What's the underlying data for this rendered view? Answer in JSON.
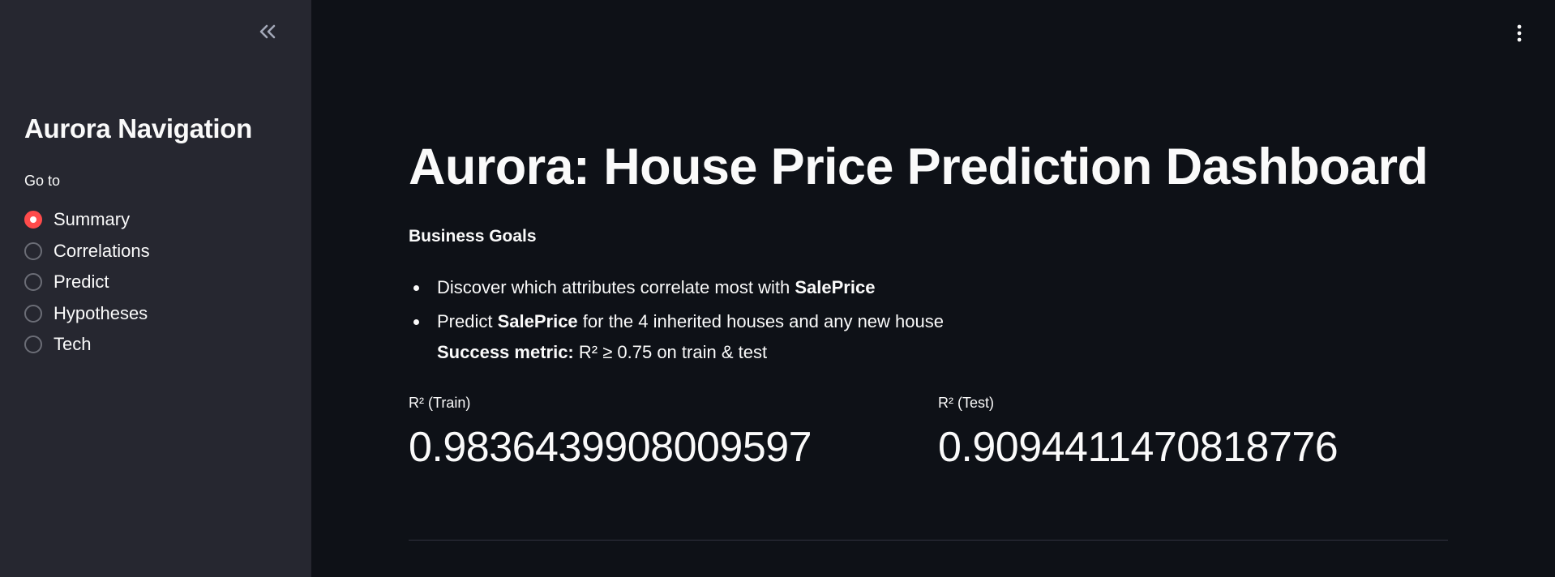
{
  "sidebar": {
    "collapse_icon": "chevron-double-left-icon",
    "title": "Aurora Navigation",
    "goto_label": "Go to",
    "items": [
      {
        "label": "Summary",
        "selected": true
      },
      {
        "label": "Correlations",
        "selected": false
      },
      {
        "label": "Predict",
        "selected": false
      },
      {
        "label": "Hypotheses",
        "selected": false
      },
      {
        "label": "Tech",
        "selected": false
      }
    ]
  },
  "header": {
    "menu_icon": "vertical-ellipsis-icon"
  },
  "main": {
    "title": "Aurora: House Price Prediction Dashboard",
    "section_heading": "Business Goals",
    "goals": [
      {
        "pre": "Discover which attributes correlate most with ",
        "bold": "SalePrice",
        "post": ""
      },
      {
        "pre": "Predict ",
        "bold": "SalePrice",
        "post": " for the 4 inherited houses and any new house",
        "sub_bold": "Success metric:",
        "sub_text": " R² ≥ 0.75 on train & test"
      }
    ],
    "metrics": {
      "train": {
        "label": "R² (Train)",
        "value": "0.9836439908009597"
      },
      "test": {
        "label": "R² (Test)",
        "value": "0.9094411470818776"
      }
    }
  },
  "colors": {
    "accent": "#ff4b4b",
    "sidebar_bg": "#262730",
    "main_bg": "#0e1117",
    "text": "#fafafa"
  }
}
